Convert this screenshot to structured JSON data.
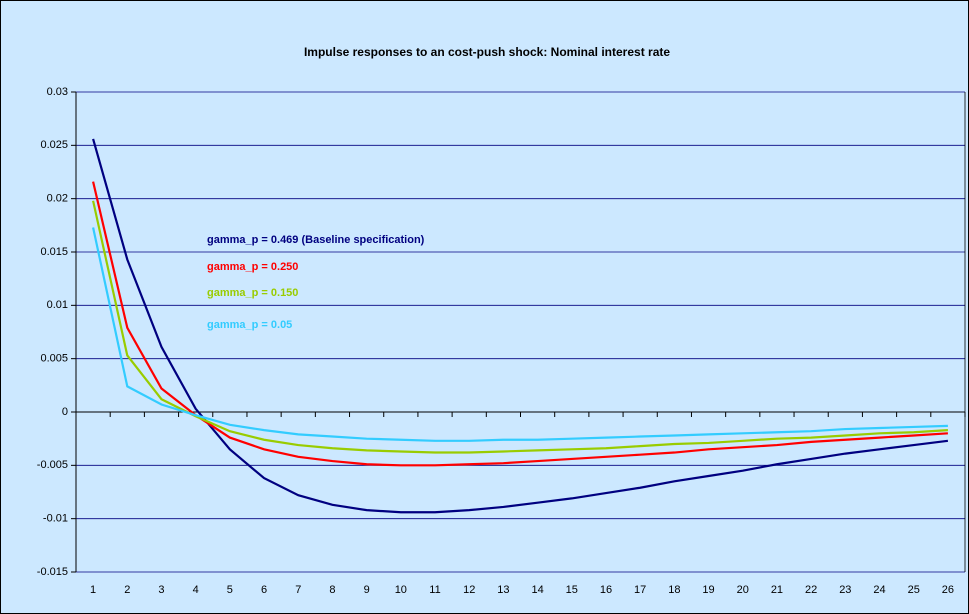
{
  "chart_data": {
    "type": "line",
    "title": "Impulse responses to an cost-push shock: Nominal interest rate",
    "categories": [
      "1",
      "2",
      "3",
      "4",
      "5",
      "6",
      "7",
      "8",
      "9",
      "10",
      "11",
      "12",
      "13",
      "14",
      "15",
      "16",
      "17",
      "18",
      "19",
      "20",
      "21",
      "22",
      "23",
      "24",
      "25",
      "26"
    ],
    "series": [
      {
        "name": "gamma_p = 0.469 (Baseline specification)",
        "color": "#000080",
        "values": [
          0.0256,
          0.0143,
          0.0061,
          0.0003,
          -0.0035,
          -0.0062,
          -0.0078,
          -0.0087,
          -0.0092,
          -0.0094,
          -0.0094,
          -0.0092,
          -0.0089,
          -0.0085,
          -0.0081,
          -0.0076,
          -0.0071,
          -0.0065,
          -0.006,
          -0.0055,
          -0.0049,
          -0.0044,
          -0.0039,
          -0.0035,
          -0.0031,
          -0.0027
        ]
      },
      {
        "name": "gamma_p = 0.250",
        "color": "#ff0000",
        "values": [
          0.0216,
          0.0079,
          0.0022,
          -0.0003,
          -0.0024,
          -0.0035,
          -0.0042,
          -0.0046,
          -0.0049,
          -0.005,
          -0.005,
          -0.0049,
          -0.0048,
          -0.0046,
          -0.0044,
          -0.0042,
          -0.004,
          -0.0038,
          -0.0035,
          -0.0033,
          -0.0031,
          -0.0028,
          -0.0026,
          -0.0024,
          -0.0022,
          -0.002
        ]
      },
      {
        "name": "gamma_p = 0.150",
        "color": "#99cc00",
        "values": [
          0.0198,
          0.0053,
          0.0012,
          -0.0004,
          -0.0018,
          -0.0026,
          -0.0031,
          -0.0034,
          -0.0036,
          -0.0037,
          -0.0038,
          -0.0038,
          -0.0037,
          -0.0036,
          -0.0035,
          -0.0034,
          -0.0032,
          -0.003,
          -0.0029,
          -0.0027,
          -0.0025,
          -0.0024,
          -0.0022,
          -0.002,
          -0.0019,
          -0.0017
        ]
      },
      {
        "name": "gamma_p = 0.05",
        "color": "#33ccff",
        "values": [
          0.0173,
          0.0024,
          0.0007,
          -0.0003,
          -0.0012,
          -0.0017,
          -0.0021,
          -0.0023,
          -0.0025,
          -0.0026,
          -0.0027,
          -0.0027,
          -0.0026,
          -0.0026,
          -0.0025,
          -0.0024,
          -0.0023,
          -0.0022,
          -0.0021,
          -0.002,
          -0.0019,
          -0.0018,
          -0.0016,
          -0.0015,
          -0.0014,
          -0.0013
        ]
      }
    ],
    "ylim": [
      -0.015,
      0.03
    ],
    "yticks": [
      0.03,
      0.025,
      0.02,
      0.015,
      0.01,
      0.005,
      0,
      -0.005,
      -0.01,
      -0.015
    ],
    "grid": true
  }
}
